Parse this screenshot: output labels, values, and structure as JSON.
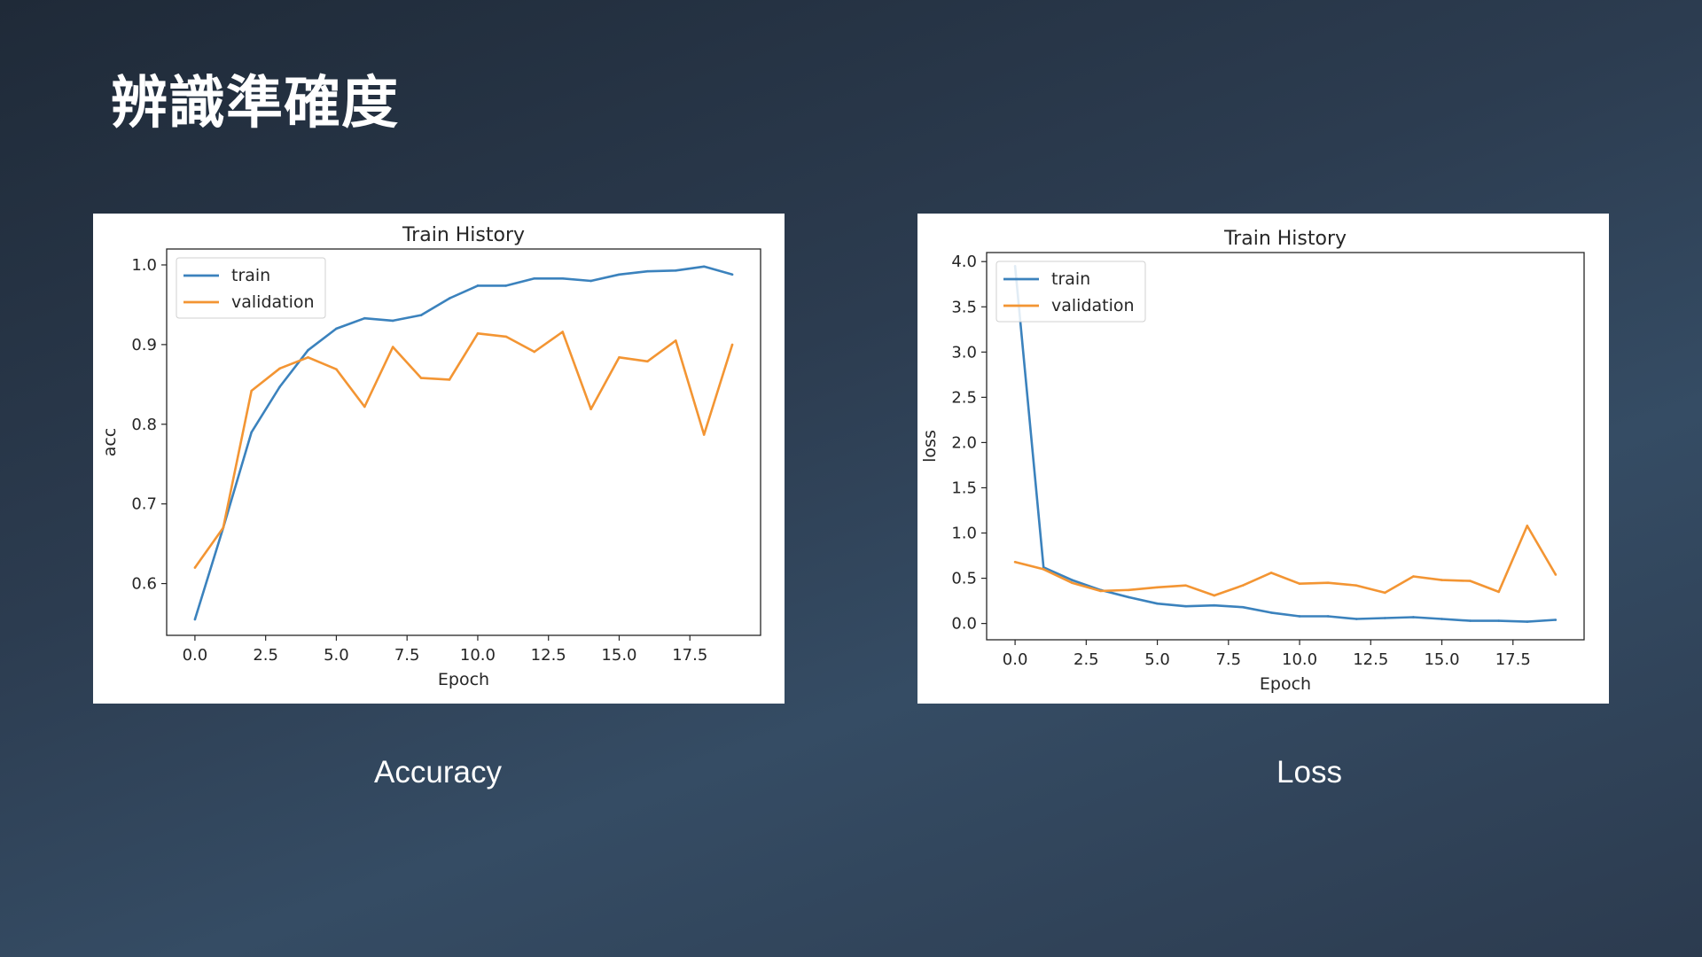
{
  "slide": {
    "title": "辨識準確度",
    "captions": [
      "Accuracy",
      "Loss"
    ]
  },
  "colors": {
    "train": "#3b82bd",
    "validation": "#f39533"
  },
  "chart_data": [
    {
      "type": "line",
      "title": "Train History",
      "xlabel": "Epoch",
      "ylabel": "acc",
      "xlim": [
        -1,
        20
      ],
      "ylim": [
        0.535,
        1.02
      ],
      "xticks": [
        0,
        2.5,
        5,
        7.5,
        10,
        12.5,
        15,
        17.5
      ],
      "xtick_labels": [
        "0.0",
        "2.5",
        "5.0",
        "7.5",
        "10.0",
        "12.5",
        "15.0",
        "17.5"
      ],
      "yticks": [
        0.6,
        0.7,
        0.8,
        0.9,
        1.0
      ],
      "ytick_labels": [
        "0.6",
        "0.7",
        "0.8",
        "0.9",
        "1.0"
      ],
      "legend": "upper-left",
      "grid": false,
      "x": [
        0,
        1,
        2,
        3,
        4,
        5,
        6,
        7,
        8,
        9,
        10,
        11,
        12,
        13,
        14,
        15,
        16,
        17,
        18,
        19
      ],
      "series": [
        {
          "name": "train",
          "color": "#3b82bd",
          "values": [
            0.555,
            0.67,
            0.79,
            0.847,
            0.893,
            0.92,
            0.933,
            0.93,
            0.937,
            0.958,
            0.974,
            0.974,
            0.983,
            0.983,
            0.98,
            0.988,
            0.992,
            0.993,
            0.998,
            0.988
          ]
        },
        {
          "name": "validation",
          "color": "#f39533",
          "values": [
            0.62,
            0.67,
            0.842,
            0.87,
            0.884,
            0.869,
            0.822,
            0.897,
            0.858,
            0.856,
            0.914,
            0.91,
            0.891,
            0.916,
            0.819,
            0.884,
            0.879,
            0.905,
            0.787,
            0.9
          ]
        }
      ]
    },
    {
      "type": "line",
      "title": "Train History",
      "xlabel": "Epoch",
      "ylabel": "loss",
      "xlim": [
        -1,
        20
      ],
      "ylim": [
        -0.18,
        4.1
      ],
      "xticks": [
        0,
        2.5,
        5,
        7.5,
        10,
        12.5,
        15,
        17.5
      ],
      "xtick_labels": [
        "0.0",
        "2.5",
        "5.0",
        "7.5",
        "10.0",
        "12.5",
        "15.0",
        "17.5"
      ],
      "yticks": [
        0,
        0.5,
        1.0,
        1.5,
        2.0,
        2.5,
        3.0,
        3.5,
        4.0
      ],
      "ytick_labels": [
        "0.0",
        "0.5",
        "1.0",
        "1.5",
        "2.0",
        "2.5",
        "3.0",
        "3.5",
        "4.0"
      ],
      "legend": "upper-left",
      "grid": false,
      "x": [
        0,
        1,
        2,
        3,
        4,
        5,
        6,
        7,
        8,
        9,
        10,
        11,
        12,
        13,
        14,
        15,
        16,
        17,
        18,
        19
      ],
      "series": [
        {
          "name": "train",
          "color": "#3b82bd",
          "values": [
            3.95,
            0.62,
            0.48,
            0.37,
            0.29,
            0.22,
            0.19,
            0.2,
            0.18,
            0.12,
            0.08,
            0.08,
            0.05,
            0.06,
            0.07,
            0.05,
            0.03,
            0.03,
            0.02,
            0.04
          ]
        },
        {
          "name": "validation",
          "color": "#f39533",
          "values": [
            0.68,
            0.6,
            0.45,
            0.36,
            0.37,
            0.4,
            0.42,
            0.31,
            0.42,
            0.56,
            0.44,
            0.45,
            0.42,
            0.34,
            0.52,
            0.48,
            0.47,
            0.35,
            1.08,
            0.54
          ]
        }
      ]
    }
  ]
}
